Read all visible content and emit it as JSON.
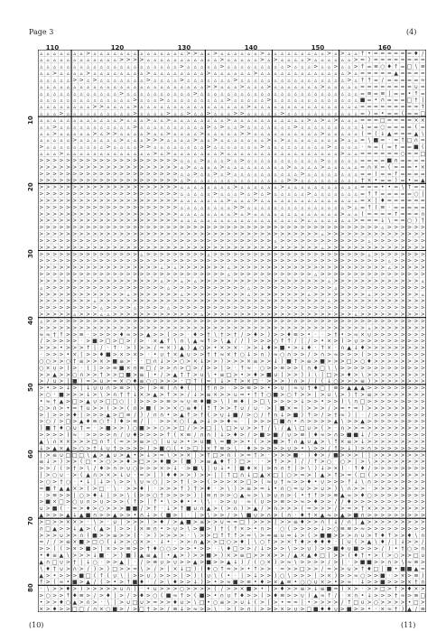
{
  "header": {
    "page_label": "Page 3",
    "page_ref": "(4)"
  },
  "footer": {
    "left_ref": "(10)",
    "right_ref": "(11)"
  },
  "column_numbers": [
    "110",
    "120",
    "130",
    "140",
    "150",
    "160"
  ],
  "row_numbers": [
    "10",
    "20",
    "30",
    "40",
    "50",
    "60",
    "70",
    "80"
  ],
  "grid": {
    "columns": 58,
    "rows": 84,
    "row_start": 1,
    "column_start": 106
  }
}
